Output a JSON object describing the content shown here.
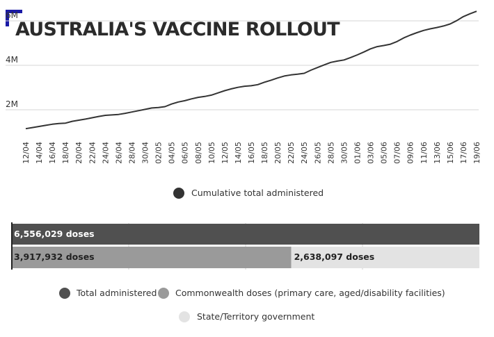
{
  "title": "AUSTRALIA'S VACCINE ROLLOUT",
  "colors": {
    "accent": "#1a1aa6",
    "line": "#333333",
    "total": "#505050",
    "commonwealth": "#9a9a9a",
    "state": "#e3e3e3"
  },
  "chart_data": [
    {
      "type": "line",
      "xlabel": "",
      "ylabel": "",
      "y_ticks": [
        "2M",
        "4M",
        "6M"
      ],
      "ylim": [
        0,
        7000000
      ],
      "grid": true,
      "legend": "bottom",
      "x_tick_labels": [
        "12/04",
        "14/04",
        "16/04",
        "18/04",
        "20/04",
        "22/04",
        "24/04",
        "26/04",
        "28/04",
        "30/04",
        "02/05",
        "04/05",
        "06/05",
        "08/05",
        "10/05",
        "12/05",
        "14/05",
        "16/05",
        "18/05",
        "20/05",
        "22/05",
        "24/05",
        "26/05",
        "28/05",
        "30/05",
        "01/06",
        "03/06",
        "05/06",
        "07/06",
        "09/06",
        "11/06",
        "13/06",
        "15/06",
        "17/06",
        "19/06"
      ],
      "series": [
        {
          "name": "Cumulative total administered",
          "x": [
            "12/04",
            "13/04",
            "14/04",
            "15/04",
            "16/04",
            "17/04",
            "18/04",
            "19/04",
            "20/04",
            "21/04",
            "22/04",
            "23/04",
            "24/04",
            "25/04",
            "26/04",
            "27/04",
            "28/04",
            "29/04",
            "30/04",
            "01/05",
            "02/05",
            "03/05",
            "04/05",
            "05/05",
            "06/05",
            "07/05",
            "08/05",
            "09/05",
            "10/05",
            "11/05",
            "12/05",
            "13/05",
            "14/05",
            "15/05",
            "16/05",
            "17/05",
            "18/05",
            "19/05",
            "20/05",
            "21/05",
            "22/05",
            "23/05",
            "24/05",
            "25/05",
            "26/05",
            "27/05",
            "28/05",
            "29/05",
            "30/05",
            "31/05",
            "01/06",
            "02/06",
            "03/06",
            "04/06",
            "05/06",
            "06/06",
            "07/06",
            "08/06",
            "09/06",
            "10/06",
            "11/06",
            "12/06",
            "13/06",
            "14/06",
            "15/06",
            "16/06",
            "17/06",
            "18/06",
            "19/06"
          ],
          "values": [
            1150000,
            1200000,
            1250000,
            1300000,
            1350000,
            1380000,
            1400000,
            1480000,
            1530000,
            1580000,
            1640000,
            1700000,
            1750000,
            1770000,
            1790000,
            1840000,
            1900000,
            1960000,
            2020000,
            2080000,
            2100000,
            2140000,
            2260000,
            2350000,
            2410000,
            2490000,
            2560000,
            2600000,
            2660000,
            2760000,
            2860000,
            2940000,
            3010000,
            3060000,
            3080000,
            3130000,
            3240000,
            3330000,
            3430000,
            3520000,
            3570000,
            3600000,
            3640000,
            3780000,
            3900000,
            4020000,
            4130000,
            4190000,
            4240000,
            4350000,
            4470000,
            4600000,
            4740000,
            4840000,
            4890000,
            4950000,
            5070000,
            5230000,
            5360000,
            5470000,
            5570000,
            5640000,
            5700000,
            5770000,
            5860000,
            6010000,
            6190000,
            6320000,
            6430000
          ]
        }
      ]
    },
    {
      "type": "bar",
      "orientation": "horizontal",
      "stacked": true,
      "legend": "bottom",
      "xlim": [
        0,
        6556029
      ],
      "series": [
        {
          "name": "Total administered",
          "values": [
            6556029,
            0
          ],
          "label": "6,556,029 doses"
        },
        {
          "name": "Commonwealth doses (primary care, aged/disability facilities)",
          "values": [
            0,
            3917932
          ],
          "label": "3,917,932 doses"
        },
        {
          "name": "State/Territory government",
          "values": [
            0,
            2638097
          ],
          "label": "2,638,097 doses"
        }
      ]
    }
  ]
}
